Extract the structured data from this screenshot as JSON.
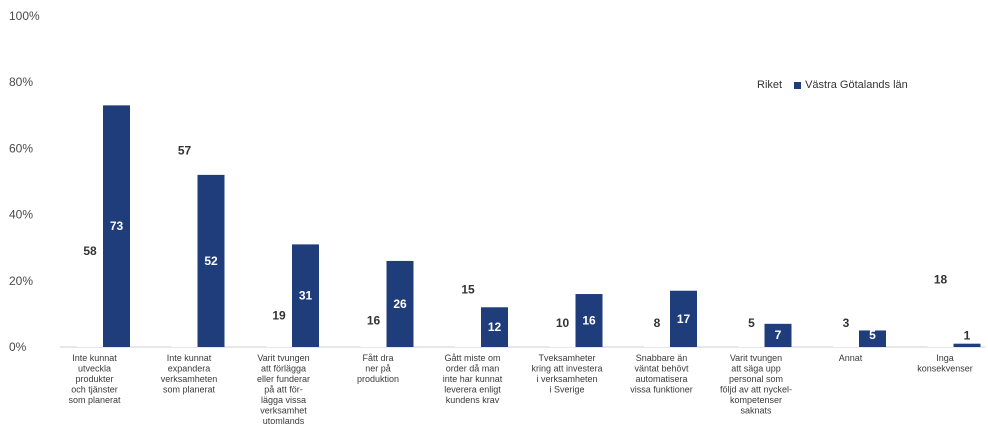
{
  "chart_data": {
    "type": "bar",
    "title": "",
    "xlabel": "",
    "ylabel": "",
    "ylim": [
      0,
      100
    ],
    "yticks": [
      "0%",
      "20%",
      "40%",
      "60%",
      "80%",
      "100%"
    ],
    "grid": false,
    "legend_position": "top-right",
    "categories": [
      "Inte kunnat utveckla produkter och tjänster som planerat",
      "Inte kunnat expandera verksamheten som planerat",
      "Varit tvungen att förlägga eller funderar på att förlägga vissa verksamhet utomlands",
      "Fått dra ner på produktion",
      "Gått miste om order då man inte har kunnat leverera enligt kundens krav",
      "Tveksamheter kring att investera i verksamheten i Sverige",
      "Snabbare än väntat behövt automatisera vissa funktioner",
      "Varit tvungen att säga upp personal som följd av att nyckel-kompetenser saknats",
      "Annat",
      "Inga konsekvenser"
    ],
    "category_lines": [
      [
        "Inte kunnat",
        "utveckla",
        "produkter",
        "och tjänster",
        "som planerat"
      ],
      [
        "Inte kunnat",
        "expandera",
        "verksamheten",
        "som planerat"
      ],
      [
        "Varit tvungen",
        "att förlägga",
        "eller funderar",
        "på att för-",
        "lägga vissa",
        "verksamhet",
        "utomlands"
      ],
      [
        "Fått dra",
        "ner på",
        "produktion"
      ],
      [
        "Gått miste om",
        "order då man",
        "inte har kunnat",
        "leverera enligt",
        "kundens krav"
      ],
      [
        "Tveksamheter",
        "kring att investera",
        "i verksamheten",
        "i Sverige"
      ],
      [
        "Snabbare än",
        "väntat behövt",
        "automatisera",
        "vissa funktioner"
      ],
      [
        "Varit tvungen",
        "att säga upp",
        "personal som",
        "följd av att nyckel-",
        "kompetenser",
        "saknats"
      ],
      [
        "Annat"
      ],
      [
        "Inga",
        "konsekvenser"
      ]
    ],
    "series": [
      {
        "name": "Riket",
        "values": [
          58,
          57,
          19,
          16,
          15,
          10,
          8,
          5,
          3,
          18
        ],
        "color": "#ffffff"
      },
      {
        "name": "Västra Götalands län",
        "values": [
          73,
          52,
          31,
          26,
          12,
          16,
          17,
          7,
          5,
          1
        ],
        "color": "#1f3d7a"
      }
    ]
  }
}
